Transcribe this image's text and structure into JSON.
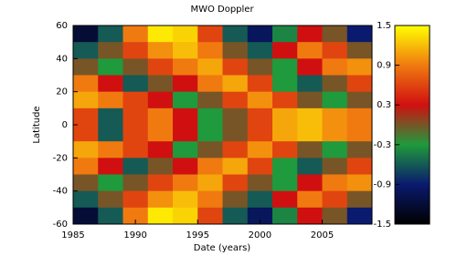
{
  "chart_data": {
    "type": "heatmap",
    "title": "MWO Doppler",
    "x_label": "Date (years)",
    "y_label": "Latitude",
    "x": [
      1986,
      1988,
      1990,
      1992,
      1994,
      1996,
      1998,
      2000,
      2002,
      2004,
      2006,
      2008
    ],
    "y": [
      55,
      45,
      35,
      25,
      15,
      5,
      -5,
      -15,
      -25,
      -35,
      -45,
      -55
    ],
    "z": [
      [
        -1.2,
        -0.6,
        0.9,
        1.4,
        1.3,
        0.6,
        -0.6,
        -1.0,
        -0.4,
        0.3,
        0.0,
        -0.9
      ],
      [
        -0.6,
        0.0,
        0.6,
        1.0,
        1.2,
        0.9,
        0.0,
        -0.6,
        0.3,
        0.9,
        0.6,
        0.0
      ],
      [
        0.0,
        -0.3,
        0.0,
        0.6,
        0.9,
        1.1,
        0.6,
        0.0,
        -0.3,
        0.3,
        0.9,
        1.0
      ],
      [
        0.9,
        0.3,
        -0.6,
        0.0,
        0.3,
        0.9,
        1.1,
        0.6,
        -0.3,
        -0.6,
        0.0,
        0.6
      ],
      [
        1.1,
        0.9,
        0.6,
        0.3,
        -0.3,
        0.0,
        0.6,
        1.0,
        0.6,
        0.0,
        -0.3,
        0.0
      ],
      [
        0.6,
        -0.6,
        0.6,
        0.9,
        0.3,
        -0.3,
        0.0,
        0.6,
        1.1,
        1.2,
        1.0,
        0.9
      ],
      [
        0.6,
        -0.6,
        0.6,
        0.9,
        0.3,
        -0.3,
        0.0,
        0.6,
        1.1,
        1.2,
        1.0,
        0.9
      ],
      [
        1.1,
        0.9,
        0.6,
        0.3,
        -0.3,
        0.0,
        0.6,
        1.0,
        0.6,
        0.0,
        -0.3,
        0.0
      ],
      [
        0.9,
        0.3,
        -0.6,
        0.0,
        0.3,
        0.9,
        1.1,
        0.6,
        -0.3,
        -0.6,
        0.0,
        0.6
      ],
      [
        0.0,
        -0.3,
        0.0,
        0.6,
        0.9,
        1.1,
        0.6,
        0.0,
        -0.3,
        0.3,
        0.9,
        1.0
      ],
      [
        -0.6,
        0.0,
        0.6,
        1.0,
        1.2,
        0.9,
        0.0,
        -0.6,
        0.3,
        0.9,
        0.6,
        0.0
      ],
      [
        -1.2,
        -0.6,
        0.9,
        1.4,
        1.3,
        0.6,
        -0.6,
        -1.0,
        -0.4,
        0.3,
        0.0,
        -0.9
      ]
    ],
    "xlim": [
      1985,
      2009
    ],
    "xticks": [
      1985,
      1990,
      1995,
      2000,
      2005
    ],
    "ylim": [
      -60,
      60
    ],
    "yticks": [
      60,
      40,
      20,
      0,
      -20,
      -40,
      -60
    ],
    "zlim": [
      -1.5,
      1.5
    ],
    "zticks": [
      1.5,
      0.9,
      0.3,
      -0.3,
      -0.9,
      -1.5
    ],
    "colormap": [
      "#000000",
      "#0a1a6e",
      "#1f9a3c",
      "#d01010",
      "#f07a10",
      "#ffff00"
    ]
  }
}
